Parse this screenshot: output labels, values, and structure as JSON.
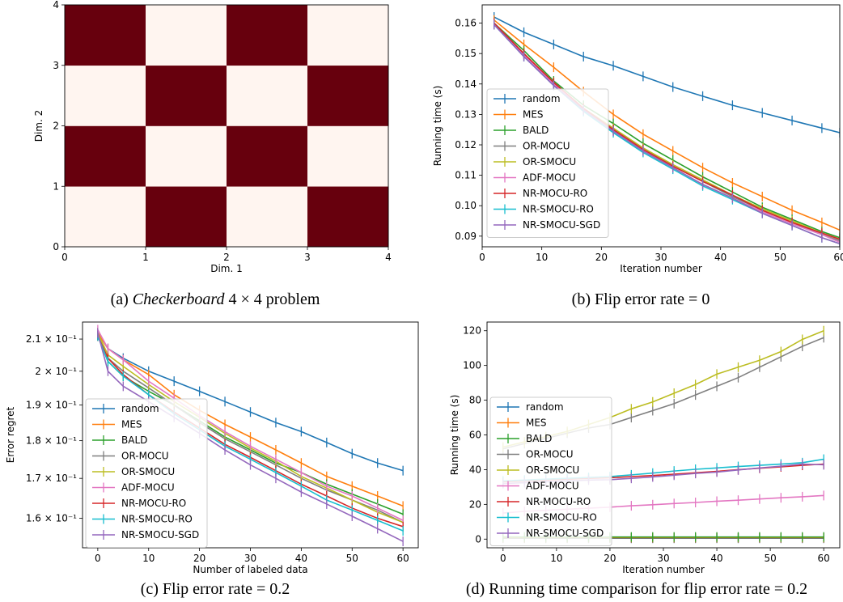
{
  "captions": {
    "a_pre": "(a) ",
    "a_em": "Checkerboard",
    "a_post": " 4 × 4 problem",
    "b": "(b) Flip error rate = 0",
    "c": "(c) Flip error rate = 0.2",
    "d": "(d) Running time comparison for flip error rate = 0.2"
  },
  "colors": {
    "random": "#1f77b4",
    "MES": "#ff7f0e",
    "BALD": "#2ca02c",
    "OR-MOCU": "#7f7f7f",
    "OR-SMOCU": "#bcbd22",
    "ADF-MOCU": "#e377c2",
    "NR-MOCU-RO": "#d62728",
    "NR-SMOCU-RO": "#17becf",
    "NR-SMOCU-SGD": "#9467bd",
    "dark_cell": "#67000d",
    "light_cell": "#fff5f0"
  },
  "chart_data": [
    {
      "type": "heatmap",
      "xlabel": "Dim. 1",
      "ylabel": "Dim. 2",
      "xlim": [
        0,
        4
      ],
      "ylim": [
        0,
        4
      ],
      "xticks": [
        "0",
        "1",
        "2",
        "3",
        "4"
      ],
      "yticks": [
        "0",
        "1",
        "2",
        "3",
        "4"
      ],
      "grid": [
        [
          0,
          1,
          0,
          1
        ],
        [
          1,
          0,
          1,
          0
        ],
        [
          0,
          1,
          0,
          1
        ],
        [
          1,
          0,
          1,
          0
        ]
      ]
    },
    {
      "type": "line",
      "xlabel": "Iteration number",
      "ylabel": "Running time (s)",
      "xlim": [
        0,
        60
      ],
      "ylim": [
        0.0865,
        0.166
      ],
      "xticks": [
        0,
        10,
        20,
        30,
        40,
        50,
        60
      ],
      "yticks": [
        0.09,
        0.1,
        0.11,
        0.12,
        0.13,
        0.14,
        0.15,
        0.16
      ],
      "ytick_labels": [
        "0.09",
        "0.10",
        "0.11",
        "0.12",
        "0.13",
        "0.14",
        "0.15",
        "0.16"
      ],
      "legend": "center-left",
      "x": [
        2,
        7,
        12,
        17,
        22,
        27,
        32,
        37,
        42,
        47,
        52,
        57,
        60
      ],
      "series": [
        {
          "name": "random",
          "values": [
            0.162,
            0.157,
            0.153,
            0.149,
            0.146,
            0.1425,
            0.139,
            0.136,
            0.133,
            0.1305,
            0.128,
            0.1255,
            0.124
          ]
        },
        {
          "name": "MES",
          "values": [
            0.161,
            0.153,
            0.1455,
            0.1375,
            0.13,
            0.1235,
            0.118,
            0.1125,
            0.1075,
            0.103,
            0.0985,
            0.0945,
            0.092
          ]
        },
        {
          "name": "BALD",
          "values": [
            0.16,
            0.151,
            0.141,
            0.133,
            0.127,
            0.1205,
            0.115,
            0.1095,
            0.1045,
            0.0995,
            0.0955,
            0.0915,
            0.0895
          ]
        },
        {
          "name": "OR-MOCU",
          "values": [
            0.16,
            0.15,
            0.14,
            0.132,
            0.125,
            0.119,
            0.113,
            0.108,
            0.103,
            0.0985,
            0.0945,
            0.0905,
            0.0885
          ]
        },
        {
          "name": "OR-SMOCU",
          "values": [
            0.16,
            0.15,
            0.1405,
            0.132,
            0.1255,
            0.119,
            0.1135,
            0.1085,
            0.1035,
            0.099,
            0.095,
            0.091,
            0.089
          ]
        },
        {
          "name": "ADF-MOCU",
          "values": [
            0.1595,
            0.1495,
            0.14,
            0.1315,
            0.1245,
            0.118,
            0.1125,
            0.107,
            0.1025,
            0.098,
            0.094,
            0.0905,
            0.088
          ]
        },
        {
          "name": "NR-MOCU-RO",
          "values": [
            0.16,
            0.15,
            0.1405,
            0.132,
            0.125,
            0.1185,
            0.113,
            0.108,
            0.1035,
            0.0985,
            0.0945,
            0.091,
            0.089
          ]
        },
        {
          "name": "NR-SMOCU-RO",
          "values": [
            0.1595,
            0.149,
            0.1395,
            0.131,
            0.124,
            0.1175,
            0.112,
            0.1065,
            0.102,
            0.0975,
            0.0935,
            0.0895,
            0.0875
          ]
        },
        {
          "name": "NR-SMOCU-SGD",
          "values": [
            0.1595,
            0.149,
            0.1395,
            0.1315,
            0.1245,
            0.118,
            0.1125,
            0.107,
            0.1025,
            0.0975,
            0.0935,
            0.0895,
            0.0875
          ]
        }
      ]
    },
    {
      "type": "line",
      "xlabel": "Number of labeled data",
      "ylabel": "Error regret",
      "xlim": [
        -3,
        63
      ],
      "ylim": [
        0.153,
        0.2155
      ],
      "yscale": "log",
      "xticks": [
        0,
        10,
        20,
        30,
        40,
        50,
        60
      ],
      "yticks": [
        0.16,
        0.17,
        0.18,
        0.19,
        0.2,
        0.21
      ],
      "ytick_labels": [
        "1.6 × 10⁻¹",
        "1.7 × 10⁻¹",
        "1.8 × 10⁻¹",
        "1.9 × 10⁻¹",
        "2 × 10⁻¹",
        "2.1 × 10⁻¹"
      ],
      "legend": "center-left",
      "x": [
        0,
        2,
        5,
        10,
        15,
        20,
        25,
        30,
        35,
        40,
        45,
        50,
        55,
        60
      ],
      "series": [
        {
          "name": "random",
          "values": [
            0.212,
            0.207,
            0.204,
            0.2,
            0.197,
            0.194,
            0.191,
            0.188,
            0.185,
            0.1825,
            0.1795,
            0.1765,
            0.174,
            0.172
          ]
        },
        {
          "name": "MES",
          "values": [
            0.212,
            0.207,
            0.2035,
            0.199,
            0.193,
            0.1885,
            0.1845,
            0.181,
            0.1775,
            0.174,
            0.1705,
            0.168,
            0.1655,
            0.163
          ]
        },
        {
          "name": "BALD",
          "values": [
            0.211,
            0.203,
            0.1985,
            0.194,
            0.19,
            0.1855,
            0.181,
            0.1775,
            0.174,
            0.1715,
            0.1685,
            0.166,
            0.1635,
            0.161
          ]
        },
        {
          "name": "OR-MOCU",
          "values": [
            0.211,
            0.204,
            0.2,
            0.195,
            0.19,
            0.185,
            0.1805,
            0.177,
            0.1735,
            0.17,
            0.167,
            0.1645,
            0.162,
            0.159
          ]
        },
        {
          "name": "OR-SMOCU",
          "values": [
            0.212,
            0.205,
            0.2015,
            0.196,
            0.191,
            0.1865,
            0.182,
            0.178,
            0.1745,
            0.1705,
            0.1675,
            0.1645,
            0.1615,
            0.159
          ]
        },
        {
          "name": "ADF-MOCU",
          "values": [
            0.213,
            0.207,
            0.2035,
            0.197,
            0.192,
            0.187,
            0.1825,
            0.1785,
            0.175,
            0.1715,
            0.168,
            0.1655,
            0.1625,
            0.1595
          ]
        },
        {
          "name": "NR-MOCU-RO",
          "values": [
            0.211,
            0.204,
            0.199,
            0.193,
            0.188,
            0.1835,
            0.179,
            0.1755,
            0.172,
            0.1685,
            0.1655,
            0.1625,
            0.16,
            0.158
          ]
        },
        {
          "name": "NR-SMOCU-RO",
          "values": [
            0.211,
            0.203,
            0.1985,
            0.193,
            0.1875,
            0.183,
            0.1785,
            0.175,
            0.1715,
            0.168,
            0.1645,
            0.162,
            0.1595,
            0.157
          ]
        },
        {
          "name": "NR-SMOCU-SGD",
          "values": [
            0.212,
            0.2,
            0.1955,
            0.191,
            0.1865,
            0.182,
            0.1775,
            0.1735,
            0.17,
            0.1665,
            0.1635,
            0.1605,
            0.1575,
            0.1545
          ]
        }
      ]
    },
    {
      "type": "line",
      "xlabel": "Iteration number",
      "ylabel": "Running time (s)",
      "xlim": [
        -3,
        63
      ],
      "ylim": [
        -5,
        125
      ],
      "xticks": [
        0,
        10,
        20,
        30,
        40,
        50,
        60
      ],
      "yticks": [
        0,
        20,
        40,
        60,
        80,
        100,
        120
      ],
      "ytick_labels": [
        "0",
        "20",
        "40",
        "60",
        "80",
        "100",
        "120"
      ],
      "legend": "center-left",
      "x": [
        0,
        4,
        8,
        12,
        16,
        20,
        24,
        28,
        32,
        36,
        40,
        44,
        48,
        52,
        56,
        60
      ],
      "series": [
        {
          "name": "random",
          "values": [
            0.5,
            0.5,
            0.5,
            0.5,
            0.5,
            0.5,
            0.5,
            0.5,
            0.5,
            0.5,
            0.5,
            0.5,
            0.5,
            0.5,
            0.5,
            0.5
          ]
        },
        {
          "name": "MES",
          "values": [
            0.8,
            0.8,
            0.8,
            0.8,
            0.8,
            0.8,
            0.8,
            0.8,
            0.8,
            0.8,
            0.8,
            0.8,
            0.8,
            0.8,
            0.8,
            0.8
          ]
        },
        {
          "name": "BALD",
          "values": [
            1.2,
            1.2,
            1.2,
            1.2,
            1.2,
            1.2,
            1.2,
            1.2,
            1.2,
            1.2,
            1.2,
            1.2,
            1.2,
            1.2,
            1.2,
            1.2
          ]
        },
        {
          "name": "OR-MOCU",
          "values": [
            52,
            55,
            58,
            61,
            64,
            66,
            70,
            74,
            78,
            83,
            88,
            93,
            99,
            105,
            111,
            116
          ]
        },
        {
          "name": "OR-SMOCU",
          "values": [
            53,
            56,
            59,
            62,
            66,
            70,
            75,
            79,
            84,
            89,
            95,
            99,
            103,
            108,
            115,
            120
          ]
        },
        {
          "name": "ADF-MOCU",
          "values": [
            15,
            16,
            16.6,
            17.2,
            17.8,
            18.4,
            19.2,
            19.8,
            20.5,
            21.1,
            21.8,
            22.4,
            23.1,
            23.8,
            24.4,
            25.1
          ]
        },
        {
          "name": "NR-MOCU-RO",
          "values": [
            33,
            33.5,
            34,
            34.5,
            35,
            35.3,
            36,
            36.6,
            37.4,
            38.2,
            39,
            40,
            40.8,
            41.6,
            42.5,
            43.2
          ]
        },
        {
          "name": "NR-SMOCU-RO",
          "values": [
            33.5,
            34,
            34.5,
            35,
            35.5,
            36,
            37,
            38,
            39.2,
            40.2,
            41,
            41.8,
            42.5,
            43.2,
            44,
            46
          ]
        },
        {
          "name": "NR-SMOCU-SGD",
          "values": [
            32,
            32.5,
            33,
            33.5,
            34,
            34.2,
            35,
            35.8,
            36.8,
            37.8,
            38.6,
            39.8,
            41,
            42,
            43.2,
            42.8
          ]
        }
      ]
    }
  ]
}
